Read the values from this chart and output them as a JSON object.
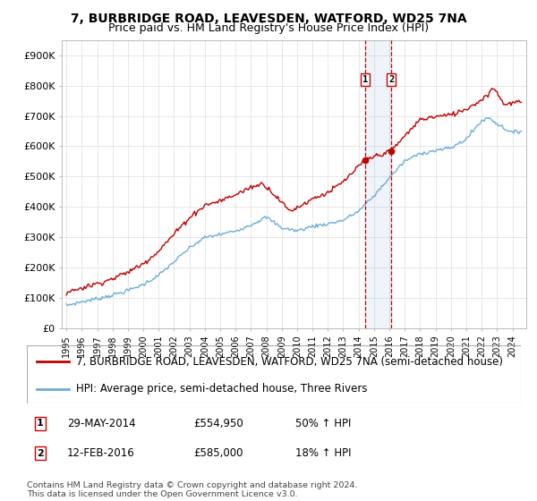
{
  "title": "7, BURBRIDGE ROAD, LEAVESDEN, WATFORD, WD25 7NA",
  "subtitle": "Price paid vs. HM Land Registry's House Price Index (HPI)",
  "legend_line1": "7, BURBRIDGE ROAD, LEAVESDEN, WATFORD, WD25 7NA (semi-detached house)",
  "legend_line2": "HPI: Average price, semi-detached house, Three Rivers",
  "sale1_label": "1",
  "sale1_date": "29-MAY-2014",
  "sale1_price": "£554,950",
  "sale1_hpi": "50% ↑ HPI",
  "sale1_year": 2014.41,
  "sale1_value": 554950,
  "sale2_label": "2",
  "sale2_date": "12-FEB-2016",
  "sale2_price": "£585,000",
  "sale2_hpi": "18% ↑ HPI",
  "sale2_year": 2016.12,
  "sale2_value": 585000,
  "footnote": "Contains HM Land Registry data © Crown copyright and database right 2024.\nThis data is licensed under the Open Government Licence v3.0.",
  "hpi_color": "#6BAED6",
  "price_color": "#C00000",
  "background_color": "#FFFFFF",
  "grid_color": "#DDDDDD",
  "title_fontsize": 10,
  "subtitle_fontsize": 9,
  "axis_fontsize": 8,
  "legend_fontsize": 8.5,
  "ylim": [
    0,
    950000
  ],
  "xlim_start": 1994.7,
  "xlim_end": 2024.9
}
